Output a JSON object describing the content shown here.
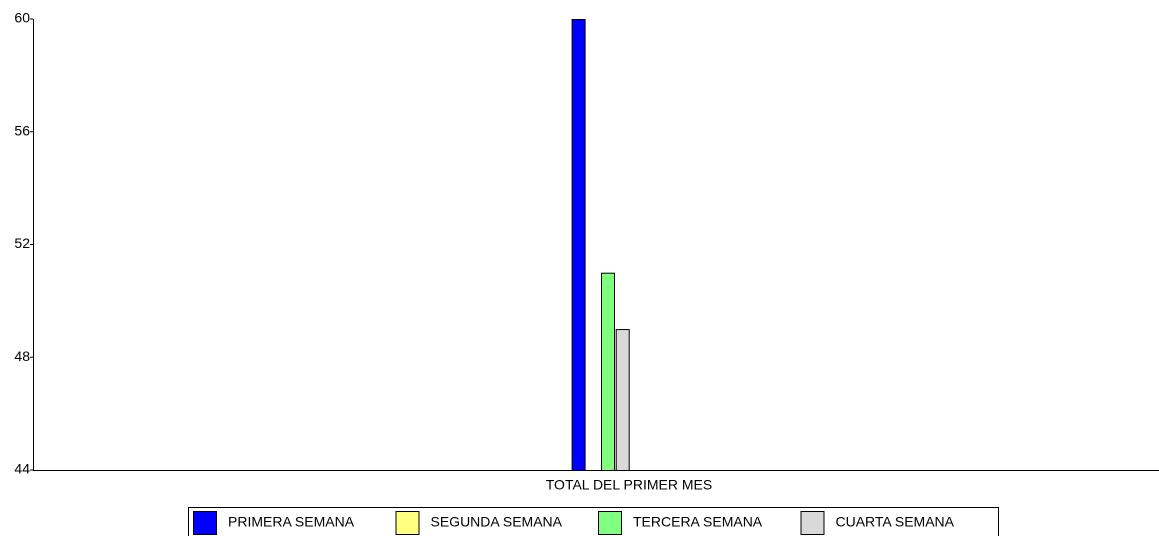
{
  "chart_data": {
    "type": "bar",
    "categories": [
      "TOTAL DEL PRIMER MES"
    ],
    "series": [
      {
        "name": "PRIMERA SEMANA",
        "color": "#0000ff",
        "values": [
          60
        ]
      },
      {
        "name": "SEGUNDA SEMANA",
        "color": "#ffff80",
        "values": [
          44
        ]
      },
      {
        "name": "TERCERA SEMANA",
        "color": "#80ff80",
        "values": [
          51
        ]
      },
      {
        "name": "CUARTA SEMANA",
        "color": "#d9d9d9",
        "values": [
          49
        ]
      }
    ],
    "ylim": [
      44,
      60
    ],
    "yticks": [
      44,
      48,
      52,
      56,
      60
    ],
    "grid": false,
    "legend": "bottom"
  }
}
